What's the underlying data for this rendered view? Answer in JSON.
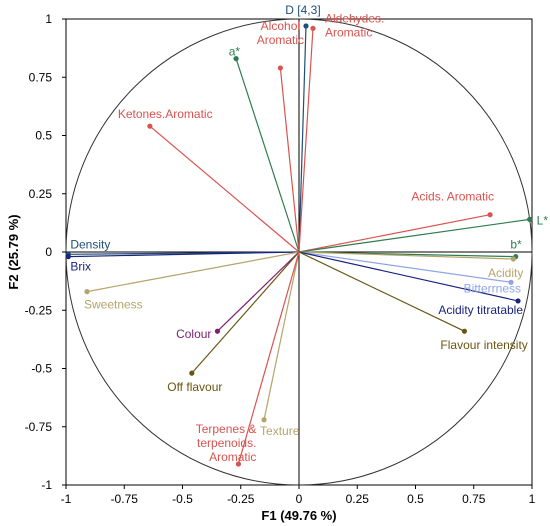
{
  "chart_data": {
    "type": "scatter",
    "subtype": "pca-correlation-circle",
    "title": "",
    "xlabel": "F1 (49.76 %)",
    "ylabel": "F2 (25.79 %)",
    "xlim": [
      -1,
      1
    ],
    "ylim": [
      -1,
      1
    ],
    "x_ticks": [
      "-1",
      "-0.75",
      "-0.5",
      "-0.25",
      "0",
      "0.25",
      "0.5",
      "0.75",
      "1"
    ],
    "y_ticks": [
      "1",
      "0.75",
      "0.5",
      "0.25",
      "0",
      "-0.25",
      "-0.5",
      "-0.75",
      "-1"
    ],
    "grid": false,
    "correlation_circle": true,
    "variables": [
      {
        "name": "D [4,3]",
        "label": [
          "D [4,3]"
        ],
        "x": 0.03,
        "y": 0.97,
        "color": "#1f4e79",
        "anchor": "middle"
      },
      {
        "name": "Aldehydes. Aromatic",
        "label": [
          "Aldehydes.",
          "Aromatic"
        ],
        "x": 0.06,
        "y": 0.96,
        "color": "#d9534f",
        "anchor": "start"
      },
      {
        "name": "Alcohol Aromatic",
        "label": [
          "Alcohol",
          "Aromatic"
        ],
        "x": -0.08,
        "y": 0.79,
        "color": "#d9534f",
        "anchor": "middle"
      },
      {
        "name": "a*",
        "label": [
          "a*"
        ],
        "x": -0.27,
        "y": 0.83,
        "color": "#2e7d4f",
        "anchor": "end"
      },
      {
        "name": "Ketones.Aromatic",
        "label": [
          "Ketones.Aromatic"
        ],
        "x": -0.64,
        "y": 0.54,
        "color": "#d9534f",
        "anchor": "start"
      },
      {
        "name": "Acids. Aromatic",
        "label": [
          "Acids. Aromatic"
        ],
        "x": 0.82,
        "y": 0.16,
        "color": "#d9534f",
        "anchor": "end"
      },
      {
        "name": "L*",
        "label": [
          "L*"
        ],
        "x": 0.99,
        "y": 0.14,
        "color": "#2e7d4f",
        "anchor": "start"
      },
      {
        "name": "b*",
        "label": [
          "b*"
        ],
        "x": 0.93,
        "y": -0.02,
        "color": "#2e7d4f",
        "anchor": "end"
      },
      {
        "name": "Acidity",
        "label": [
          "Acidity"
        ],
        "x": 0.92,
        "y": -0.03,
        "color": "#b5a46a",
        "anchor": "end"
      },
      {
        "name": "Bitterrness",
        "label": [
          "Bitterrness"
        ],
        "x": 0.91,
        "y": -0.13,
        "color": "#8fa6e3",
        "anchor": "end"
      },
      {
        "name": "Acidity titratable",
        "label": [
          "Acidity titratable"
        ],
        "x": 0.94,
        "y": -0.21,
        "color": "#1a237e",
        "anchor": "end"
      },
      {
        "name": "Flavour intensity",
        "label": [
          "Flavour intensity"
        ],
        "x": 0.71,
        "y": -0.34,
        "color": "#6b5412",
        "anchor": "start"
      },
      {
        "name": "Density",
        "label": [
          "Density"
        ],
        "x": -0.99,
        "y": -0.01,
        "color": "#1f4e79",
        "anchor": "start"
      },
      {
        "name": "Brix",
        "label": [
          "Brix"
        ],
        "x": -0.99,
        "y": -0.02,
        "color": "#1a237e",
        "anchor": "start"
      },
      {
        "name": "Sweetness",
        "label": [
          "Sweetness"
        ],
        "x": -0.91,
        "y": -0.17,
        "color": "#b5a46a",
        "anchor": "start"
      },
      {
        "name": "Colour",
        "label": [
          "Colour"
        ],
        "x": -0.35,
        "y": -0.34,
        "color": "#7b1f6e",
        "anchor": "end"
      },
      {
        "name": "Off flavour",
        "label": [
          "Off flavour"
        ],
        "x": -0.46,
        "y": -0.52,
        "color": "#6b5412",
        "anchor": "middle"
      },
      {
        "name": "Texture",
        "label": [
          "Texture"
        ],
        "x": -0.15,
        "y": -0.72,
        "color": "#b5a46a",
        "anchor": "start"
      },
      {
        "name": "Terpenes & terpenoids. Aromatic",
        "label": [
          "Terpenes &",
          "terpenoids.",
          "Aromatic"
        ],
        "x": -0.26,
        "y": -0.91,
        "color": "#d9534f",
        "anchor": "end"
      }
    ]
  }
}
